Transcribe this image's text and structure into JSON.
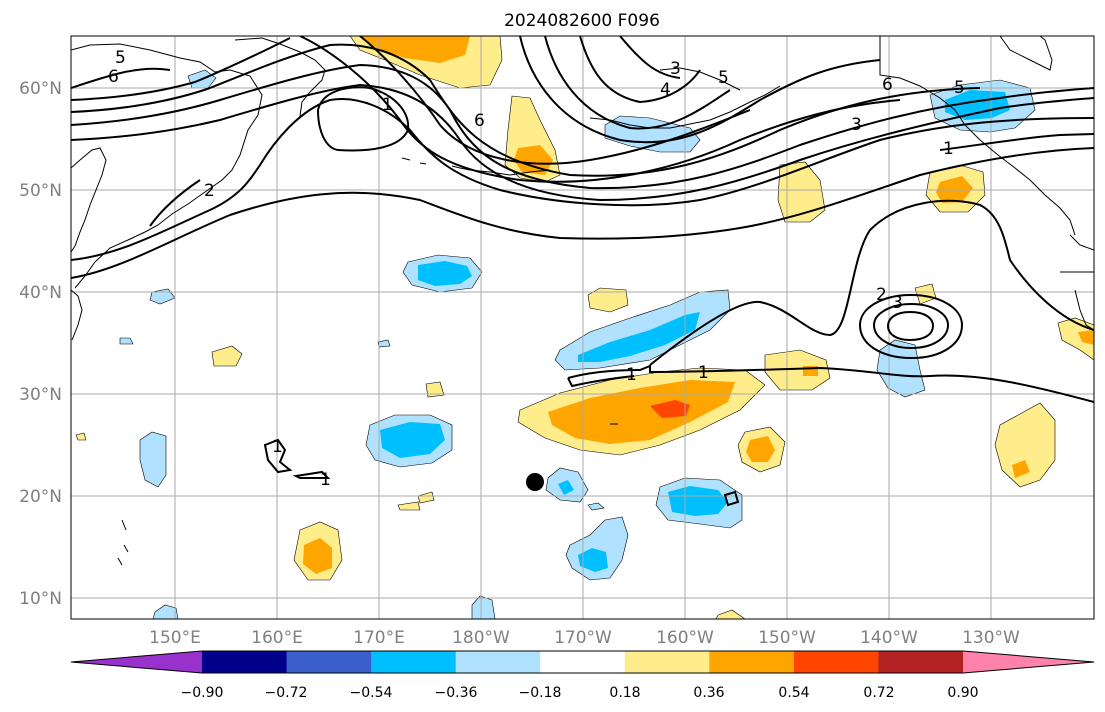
{
  "title": "2024082600 F096",
  "lat_labels": [
    "60°N",
    "50°N",
    "40°N",
    "30°N",
    "20°N",
    "10°N"
  ],
  "lon_labels": [
    "150°E",
    "160°E",
    "170°E",
    "180°W",
    "170°W",
    "160°W",
    "150°W",
    "140°W",
    "130°W"
  ],
  "colorbar": {
    "ticks": [
      "−0.90",
      "−0.72",
      "−0.54",
      "−0.36",
      "−0.18",
      "0.18",
      "0.36",
      "0.54",
      "0.72",
      "0.90"
    ],
    "colors": [
      "#9932cc",
      "#00008b",
      "#3a5fcd",
      "#00bfff",
      "#b0e2ff",
      "#ffffff",
      "#ffec8b",
      "#ffa500",
      "#ff4500",
      "#b22222",
      "#ff82ab"
    ]
  },
  "contour_labels": [
    "5",
    "6",
    "3",
    "4",
    "5",
    "6",
    "1",
    "6",
    "2",
    "3",
    "5",
    "1",
    "1",
    "1",
    "2",
    "3",
    "1",
    "1"
  ],
  "fill_colors": {
    "light_blue": "#b0e2ff",
    "blue": "#00bfff",
    "light_yellow": "#ffec8b",
    "orange": "#ffa500",
    "red_orange": "#ff4500"
  }
}
